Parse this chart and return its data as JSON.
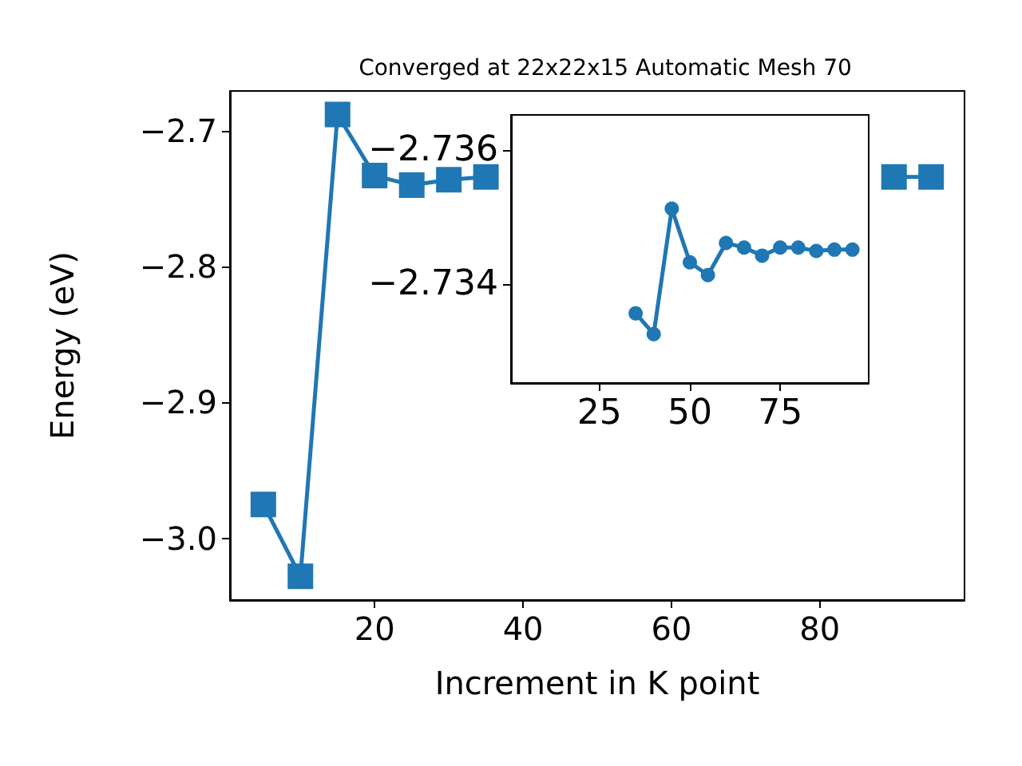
{
  "chart_data": [
    {
      "type": "line",
      "title": "Converged at 22x22x15 Automatic Mesh 70",
      "xlabel": "Increment in K point",
      "ylabel": "Energy (eV)",
      "marker": "square",
      "grid": false,
      "x": [
        5,
        10,
        15,
        20,
        25,
        30,
        35,
        40,
        45,
        50,
        55,
        60,
        65,
        70,
        75,
        80,
        85,
        90,
        95
      ],
      "series": [
        {
          "color": "#1f77b4",
          "values": [
            -2.975,
            -3.028,
            -2.688,
            -2.733,
            -2.74,
            -2.736,
            -2.734,
            null,
            null,
            null,
            null,
            null,
            null,
            null,
            null,
            null,
            null,
            -2.734,
            -2.734
          ]
        }
      ],
      "xlim": [
        0.5,
        99.5
      ],
      "xticks": [
        20,
        40,
        60,
        80
      ],
      "ylim": [
        -3.0454,
        -2.6707
      ],
      "yticks": [
        {
          "value": -3.0,
          "label": "−3.0"
        },
        {
          "value": -2.9,
          "label": "−2.9"
        },
        {
          "value": -2.8,
          "label": "−2.8"
        },
        {
          "value": -2.7,
          "label": "−2.7"
        }
      ]
    },
    {
      "type": "line",
      "marker": "circle",
      "grid": false,
      "x": [
        35,
        40,
        45,
        50,
        55,
        60,
        65,
        70,
        75,
        80,
        85,
        90,
        95
      ],
      "series": [
        {
          "color": "#1f77b4",
          "values": [
            -2.73356,
            -2.73325,
            -2.73512,
            -2.73432,
            -2.73413,
            -2.73461,
            -2.73454,
            -2.73442,
            -2.73454,
            -2.73454,
            -2.73449,
            -2.73451,
            -2.73451
          ]
        }
      ],
      "xlim": [
        0.5,
        99.5
      ],
      "xticks": [
        25,
        50,
        75
      ],
      "ylim": [
        -2.73252,
        -2.73652
      ],
      "yticks": [
        {
          "value": -2.736,
          "label": "−2.736"
        },
        {
          "value": -2.734,
          "label": "−2.734"
        }
      ]
    }
  ]
}
